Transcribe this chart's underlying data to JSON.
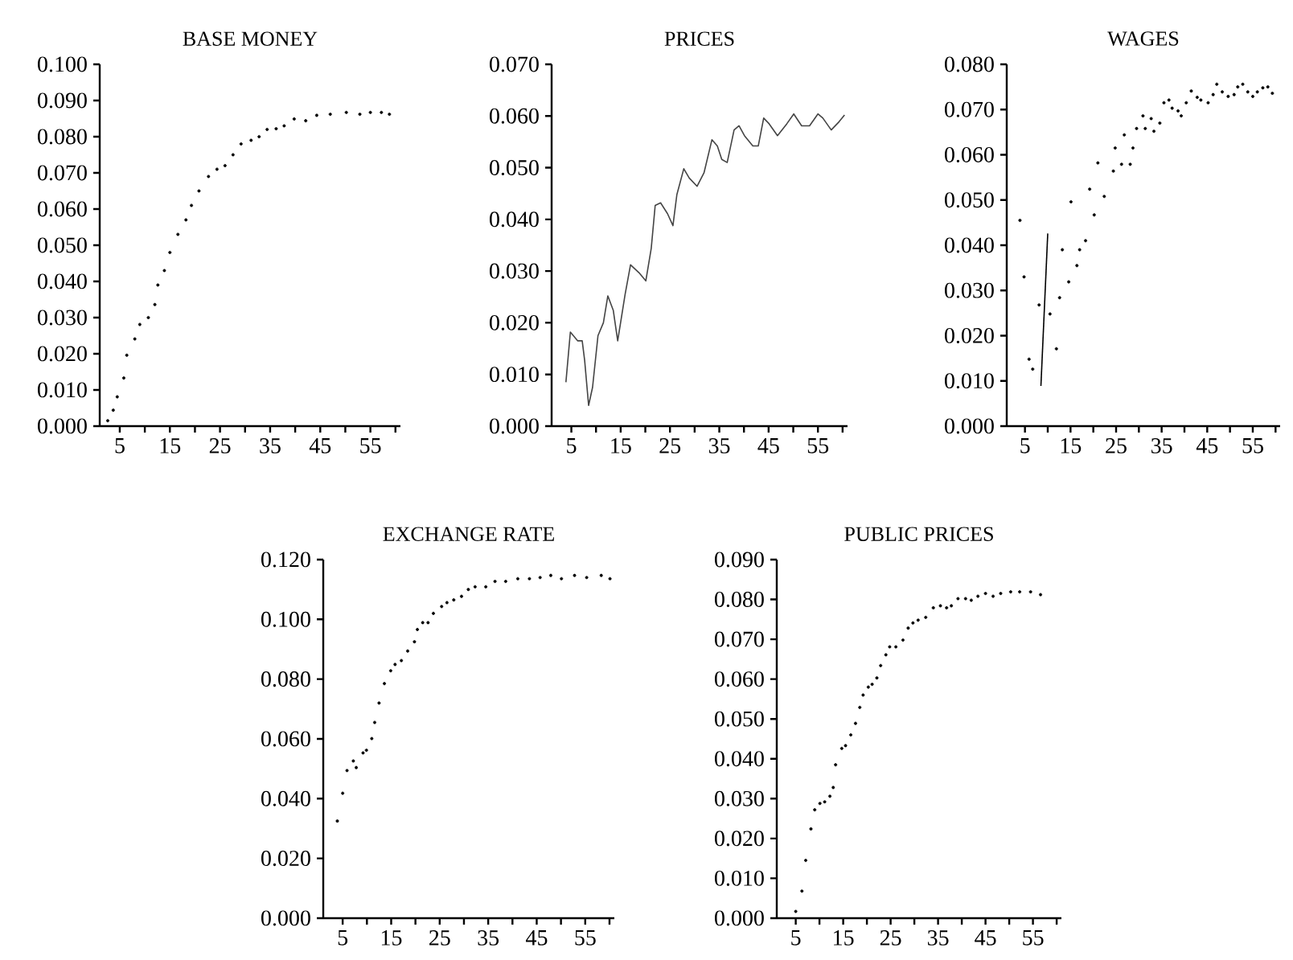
{
  "chart_data": [
    {
      "type": "scatter",
      "title": "BASE MONEY",
      "color": "#000000",
      "marker": "circle",
      "x": [
        2.6,
        3.7,
        4.5,
        5.8,
        6.4,
        8,
        9,
        10.7,
        12,
        12.6,
        13.9,
        15,
        16.6,
        18.2,
        19.3,
        20.8,
        22.7,
        24.4,
        26,
        27.6,
        29.2,
        31.2,
        32.8,
        34.4,
        36.2,
        37.8,
        39.8,
        42.1,
        44.3,
        47,
        50.2,
        52.9,
        55,
        57.2,
        58.8
      ],
      "values": [
        0.0015,
        0.0044,
        0.0081,
        0.0133,
        0.0196,
        0.0241,
        0.0281,
        0.03,
        0.0336,
        0.039,
        0.043,
        0.048,
        0.053,
        0.057,
        0.061,
        0.065,
        0.069,
        0.071,
        0.072,
        0.075,
        0.078,
        0.079,
        0.08,
        0.082,
        0.0822,
        0.083,
        0.0849,
        0.0844,
        0.0859,
        0.0862,
        0.0867,
        0.0862,
        0.0867,
        0.0867,
        0.0862
      ],
      "xlim": [
        1,
        61
      ],
      "ylim": [
        0,
        0.1
      ],
      "xticks": [
        5,
        {
          "value": 10,
          "label": null
        },
        15,
        {
          "value": 20,
          "label": null
        },
        25,
        {
          "value": 30,
          "label": null
        },
        35,
        {
          "value": 40,
          "label": null
        },
        45,
        {
          "value": 50,
          "label": null
        },
        55,
        {
          "value": 60,
          "label": null
        }
      ],
      "yticks": [
        {
          "value": 0,
          "label": "0.000"
        },
        {
          "value": 0.01,
          "label": "0.010"
        },
        {
          "value": 0.02,
          "label": "0.020"
        },
        {
          "value": 0.03,
          "label": "0.030"
        },
        {
          "value": 0.04,
          "label": "0.040"
        },
        {
          "value": 0.05,
          "label": "0.050"
        },
        {
          "value": 0.06,
          "label": "0.060"
        },
        {
          "value": 0.07,
          "label": "0.070"
        },
        {
          "value": 0.08,
          "label": "0.080"
        },
        {
          "value": 0.09,
          "label": "0.090"
        },
        {
          "value": 0.1,
          "label": "0.100"
        }
      ]
    },
    {
      "type": "line",
      "title": "PRICES",
      "color": "#444444",
      "x": [
        3.9,
        4.8,
        6.3,
        7.2,
        7.7,
        8.5,
        9.3,
        10.4,
        11.5,
        12.4,
        13.5,
        14.4,
        15.9,
        17,
        18.7,
        20.1,
        21.2,
        22,
        23.1,
        24.5,
        25.6,
        26.4,
        27.8,
        28.9,
        30.5,
        31.9,
        33.5,
        34.6,
        35.5,
        36.6,
        38,
        39,
        40.1,
        41.8,
        42.9,
        44,
        45.1,
        46.8,
        48.7,
        50.1,
        51.7,
        53.3,
        55,
        56,
        57.7,
        59.3,
        60.4
      ],
      "values": [
        0.0085,
        0.0182,
        0.0165,
        0.0165,
        0.0127,
        0.004,
        0.0075,
        0.0175,
        0.02,
        0.0252,
        0.0224,
        0.0165,
        0.0255,
        0.0312,
        0.0297,
        0.0281,
        0.0344,
        0.0427,
        0.0432,
        0.0411,
        0.0388,
        0.0448,
        0.0498,
        0.048,
        0.0464,
        0.049,
        0.0554,
        0.0542,
        0.0516,
        0.051,
        0.0573,
        0.0581,
        0.0562,
        0.0542,
        0.0542,
        0.0596,
        0.0585,
        0.0562,
        0.0585,
        0.0604,
        0.0581,
        0.0581,
        0.0604,
        0.0596,
        0.0573,
        0.0589,
        0.0602
      ],
      "xlim": [
        1,
        61
      ],
      "ylim": [
        0,
        0.07
      ],
      "xticks": [
        5,
        {
          "value": 10,
          "label": null
        },
        15,
        {
          "value": 20,
          "label": null
        },
        25,
        {
          "value": 30,
          "label": null
        },
        35,
        {
          "value": 40,
          "label": null
        },
        45,
        {
          "value": 50,
          "label": null
        },
        55,
        {
          "value": 60,
          "label": null
        }
      ],
      "yticks": [
        {
          "value": 0,
          "label": "0.000"
        },
        {
          "value": 0.01,
          "label": "0.010"
        },
        {
          "value": 0.02,
          "label": "0.020"
        },
        {
          "value": 0.03,
          "label": "0.030"
        },
        {
          "value": 0.04,
          "label": "0.040"
        },
        {
          "value": 0.05,
          "label": "0.050"
        },
        {
          "value": 0.06,
          "label": "0.060"
        },
        {
          "value": 0.07,
          "label": "0.070"
        }
      ]
    },
    {
      "type": "scatter",
      "title": "WAGES",
      "marker": "circle",
      "series": [
        {
          "type": "line",
          "marker": "none",
          "color": "#000000",
          "x": [
            8.5,
            10
          ],
          "values": [
            0.0089,
            0.0426
          ]
        },
        {
          "type": "scatter",
          "color": "#000000",
          "x": [
            3.9,
            4.8,
            5.9,
            6.7,
            8.1,
            10.5,
            11.9,
            12.6,
            13.2,
            14.6,
            15.1,
            16.4,
            17,
            18.3,
            19.2,
            20.2,
            21,
            22.4,
            24.4,
            24.8,
            26.2,
            26.8,
            28.1,
            28.7,
            29.5,
            30.9,
            31.4,
            32.7,
            33.3,
            34.6,
            35.5,
            36.6,
            37.3,
            38.6,
            39.3,
            40.4,
            41.5,
            42.8,
            43.6,
            45.2,
            46.3,
            47.1,
            48.3,
            49.6,
            50.9,
            51.7,
            52.8,
            53.9,
            55,
            56,
            57.2,
            58.3,
            59.3
          ],
          "values": [
            0.0455,
            0.033,
            0.0148,
            0.0126,
            0.0268,
            0.0248,
            0.0171,
            0.0284,
            0.039,
            0.0319,
            0.0496,
            0.0355,
            0.039,
            0.041,
            0.0524,
            0.0467,
            0.0582,
            0.0508,
            0.0564,
            0.0615,
            0.0579,
            0.0644,
            0.0579,
            0.0615,
            0.0658,
            0.0686,
            0.0658,
            0.068,
            0.0652,
            0.067,
            0.0715,
            0.0721,
            0.0703,
            0.0697,
            0.0686,
            0.0715,
            0.0741,
            0.0727,
            0.0721,
            0.0715,
            0.0733,
            0.0756,
            0.0739,
            0.0729,
            0.0733,
            0.075,
            0.0756,
            0.0739,
            0.0729,
            0.0739,
            0.0748,
            0.075,
            0.0736
          ]
        }
      ],
      "xlim": [
        1,
        61
      ],
      "ylim": [
        0,
        0.08
      ],
      "xticks": [
        5,
        {
          "value": 10,
          "label": null
        },
        15,
        {
          "value": 20,
          "label": null
        },
        25,
        {
          "value": 30,
          "label": null
        },
        35,
        {
          "value": 40,
          "label": null
        },
        45,
        {
          "value": 50,
          "label": null
        },
        55,
        {
          "value": 60,
          "label": null
        }
      ],
      "yticks": [
        {
          "value": 0,
          "label": "0.000"
        },
        {
          "value": 0.01,
          "label": "0.010"
        },
        {
          "value": 0.02,
          "label": "0.020"
        },
        {
          "value": 0.03,
          "label": "0.030"
        },
        {
          "value": 0.04,
          "label": "0.040"
        },
        {
          "value": 0.05,
          "label": "0.050"
        },
        {
          "value": 0.06,
          "label": "0.060"
        },
        {
          "value": 0.07,
          "label": "0.070"
        },
        {
          "value": 0.08,
          "label": "0.080"
        }
      ]
    },
    {
      "type": "scatter",
      "title": "EXCHANGE RATE",
      "color": "#000000",
      "marker": "circle",
      "x": [
        3.9,
        5,
        5.9,
        7.2,
        7.8,
        9.2,
        9.9,
        11,
        11.6,
        12.5,
        13.6,
        14.9,
        15.8,
        17.1,
        18.4,
        19.8,
        20.4,
        21.5,
        22.6,
        23.7,
        25.4,
        26.5,
        27.9,
        29.5,
        30.9,
        32.3,
        34.5,
        36.4,
        38.6,
        41.1,
        43.5,
        45.7,
        47.9,
        50.1,
        52.8,
        55.3,
        58.3,
        60.1
      ],
      "values": [
        0.0325,
        0.0418,
        0.0494,
        0.0526,
        0.0504,
        0.0553,
        0.0562,
        0.0601,
        0.0655,
        0.072,
        0.0785,
        0.0828,
        0.0849,
        0.0862,
        0.0894,
        0.0925,
        0.0966,
        0.0989,
        0.0989,
        0.102,
        0.1043,
        0.1056,
        0.1065,
        0.1077,
        0.11,
        0.1109,
        0.1109,
        0.1127,
        0.1127,
        0.1136,
        0.1136,
        0.114,
        0.1147,
        0.1136,
        0.1147,
        0.114,
        0.1147,
        0.1136
      ],
      "xlim": [
        1,
        61
      ],
      "ylim": [
        0,
        0.12
      ],
      "xticks": [
        5,
        {
          "value": 10,
          "label": null
        },
        15,
        {
          "value": 20,
          "label": null
        },
        25,
        {
          "value": 30,
          "label": null
        },
        35,
        {
          "value": 40,
          "label": null
        },
        45,
        {
          "value": 50,
          "label": null
        },
        55,
        {
          "value": 60,
          "label": null
        }
      ],
      "yticks": [
        {
          "value": 0,
          "label": "0.000"
        },
        {
          "value": 0.02,
          "label": "0.020"
        },
        {
          "value": 0.04,
          "label": "0.040"
        },
        {
          "value": 0.06,
          "label": "0.060"
        },
        {
          "value": 0.08,
          "label": "0.080"
        },
        {
          "value": 0.1,
          "label": "0.100"
        },
        {
          "value": 0.12,
          "label": "0.120"
        }
      ]
    },
    {
      "type": "scatter",
      "title": "PUBLIC PRICES",
      "color": "#000000",
      "marker": "circle",
      "x": [
        5,
        6.3,
        7.1,
        8.2,
        9,
        10.1,
        11.1,
        12.2,
        12.9,
        13.4,
        14.7,
        15.5,
        16.6,
        17.6,
        18.5,
        19.2,
        20.3,
        21.1,
        22.1,
        22.9,
        24,
        24.8,
        26.1,
        27.6,
        28.7,
        29.7,
        30.8,
        32.4,
        34,
        35.5,
        36.8,
        37.8,
        39.2,
        40.8,
        42,
        43.4,
        45,
        46.6,
        48.2,
        50.3,
        52.2,
        54.5,
        56.6
      ],
      "values": [
        0.0017,
        0.0068,
        0.0145,
        0.0224,
        0.0272,
        0.0288,
        0.0292,
        0.0306,
        0.0328,
        0.0385,
        0.0426,
        0.0433,
        0.046,
        0.0489,
        0.0529,
        0.056,
        0.058,
        0.0587,
        0.0603,
        0.0634,
        0.0661,
        0.0681,
        0.0681,
        0.0698,
        0.0728,
        0.0741,
        0.0748,
        0.0755,
        0.0779,
        0.0784,
        0.0779,
        0.0784,
        0.0802,
        0.0802,
        0.0798,
        0.0808,
        0.0815,
        0.0808,
        0.0815,
        0.0819,
        0.0819,
        0.0819,
        0.0812
      ],
      "xlim": [
        1,
        61
      ],
      "ylim": [
        0,
        0.09
      ],
      "xticks": [
        5,
        {
          "value": 10,
          "label": null
        },
        15,
        {
          "value": 20,
          "label": null
        },
        25,
        {
          "value": 30,
          "label": null
        },
        35,
        {
          "value": 40,
          "label": null
        },
        45,
        {
          "value": 50,
          "label": null
        },
        55,
        {
          "value": 60,
          "label": null
        }
      ],
      "yticks": [
        {
          "value": 0,
          "label": "0.000"
        },
        {
          "value": 0.01,
          "label": "0.010"
        },
        {
          "value": 0.02,
          "label": "0.020"
        },
        {
          "value": 0.03,
          "label": "0.030"
        },
        {
          "value": 0.04,
          "label": "0.040"
        },
        {
          "value": 0.05,
          "label": "0.050"
        },
        {
          "value": 0.06,
          "label": "0.060"
        },
        {
          "value": 0.07,
          "label": "0.070"
        },
        {
          "value": 0.08,
          "label": "0.080"
        },
        {
          "value": 0.09,
          "label": "0.090"
        }
      ]
    }
  ]
}
